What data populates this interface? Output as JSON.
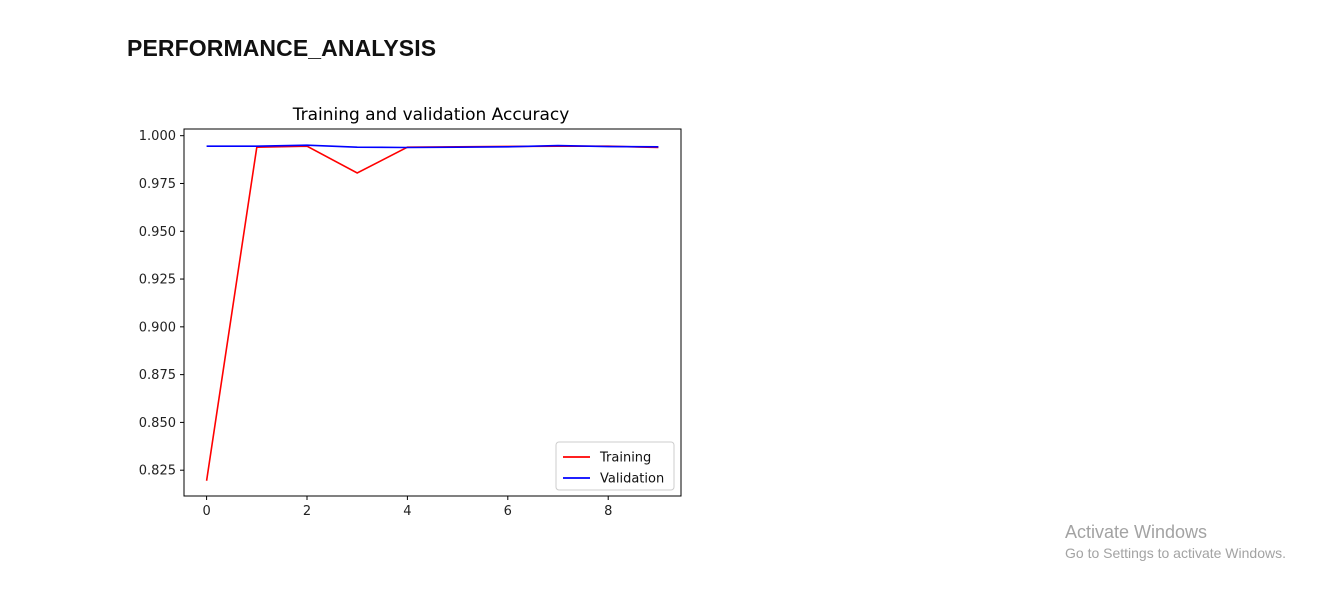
{
  "page": {
    "heading": "PERFORMANCE_ANALYSIS"
  },
  "activation": {
    "title": "Activate Windows",
    "subtitle": "Go to Settings to activate Windows."
  },
  "chart_data": {
    "type": "line",
    "title": "Training and validation Accuracy",
    "xlabel": "",
    "ylabel": "",
    "xlim": [
      -0.45,
      9.45
    ],
    "ylim": [
      0.8115,
      1.0035
    ],
    "xticks": [
      0,
      2,
      4,
      6,
      8
    ],
    "yticks": [
      0.825,
      0.85,
      0.875,
      0.9,
      0.925,
      0.95,
      0.975,
      1.0
    ],
    "ytick_labels": [
      "0.825",
      "0.850",
      "0.875",
      "0.900",
      "0.925",
      "0.950",
      "0.975",
      "1.000"
    ],
    "grid": false,
    "legend_position": "lower-right",
    "series": [
      {
        "name": "Training",
        "color": "#ff0000",
        "x": [
          0,
          1,
          2,
          3,
          4,
          5,
          6,
          7,
          8,
          9
        ],
        "y": [
          0.8195,
          0.994,
          0.9945,
          0.9805,
          0.994,
          0.9942,
          0.9944,
          0.9945,
          0.9945,
          0.9938
        ]
      },
      {
        "name": "Validation",
        "color": "#0000ff",
        "x": [
          0,
          1,
          2,
          3,
          4,
          5,
          6,
          7,
          8,
          9
        ],
        "y": [
          0.9945,
          0.9945,
          0.995,
          0.994,
          0.9938,
          0.994,
          0.9942,
          0.9948,
          0.9943,
          0.9942
        ]
      }
    ]
  }
}
